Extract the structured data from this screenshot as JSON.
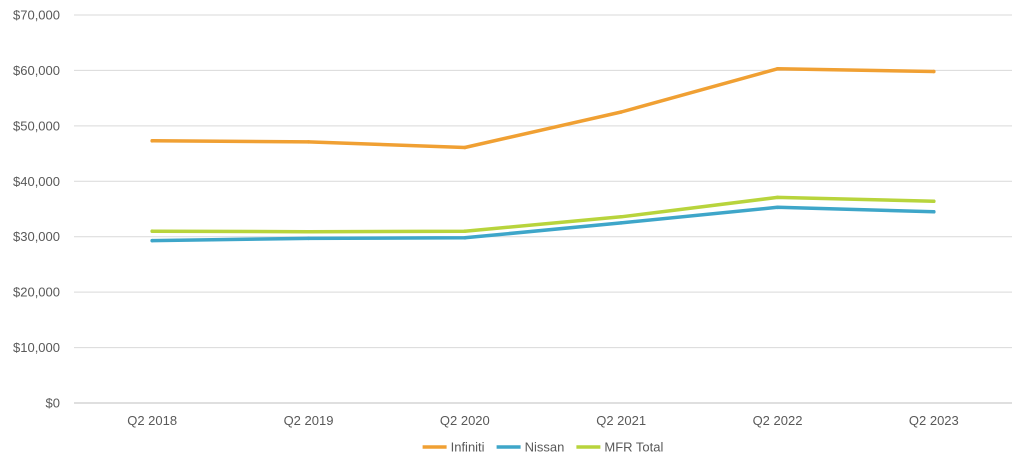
{
  "chart_data": {
    "type": "line",
    "title": "",
    "xlabel": "",
    "ylabel": "",
    "categories": [
      "Q2 2018",
      "Q2 2019",
      "Q2 2020",
      "Q2 2021",
      "Q2 2022",
      "Q2 2023"
    ],
    "ylim": [
      0,
      70000
    ],
    "y_ticks": [
      0,
      10000,
      20000,
      30000,
      40000,
      50000,
      60000,
      70000
    ],
    "y_tick_labels": [
      "$0",
      "$10,000",
      "$20,000",
      "$30,000",
      "$40,000",
      "$50,000",
      "$60,000",
      "$70,000"
    ],
    "grid": true,
    "legend_position": "bottom",
    "series": [
      {
        "name": "Infiniti",
        "color": "#f0a033",
        "values": [
          47300,
          47100,
          46100,
          52500,
          60300,
          59800
        ]
      },
      {
        "name": "Nissan",
        "color": "#3ea6c9",
        "values": [
          29300,
          29700,
          29800,
          32500,
          35300,
          34500
        ]
      },
      {
        "name": "MFR Total",
        "color": "#b8d43c",
        "values": [
          31000,
          30900,
          31000,
          33600,
          37100,
          36400
        ]
      }
    ]
  }
}
